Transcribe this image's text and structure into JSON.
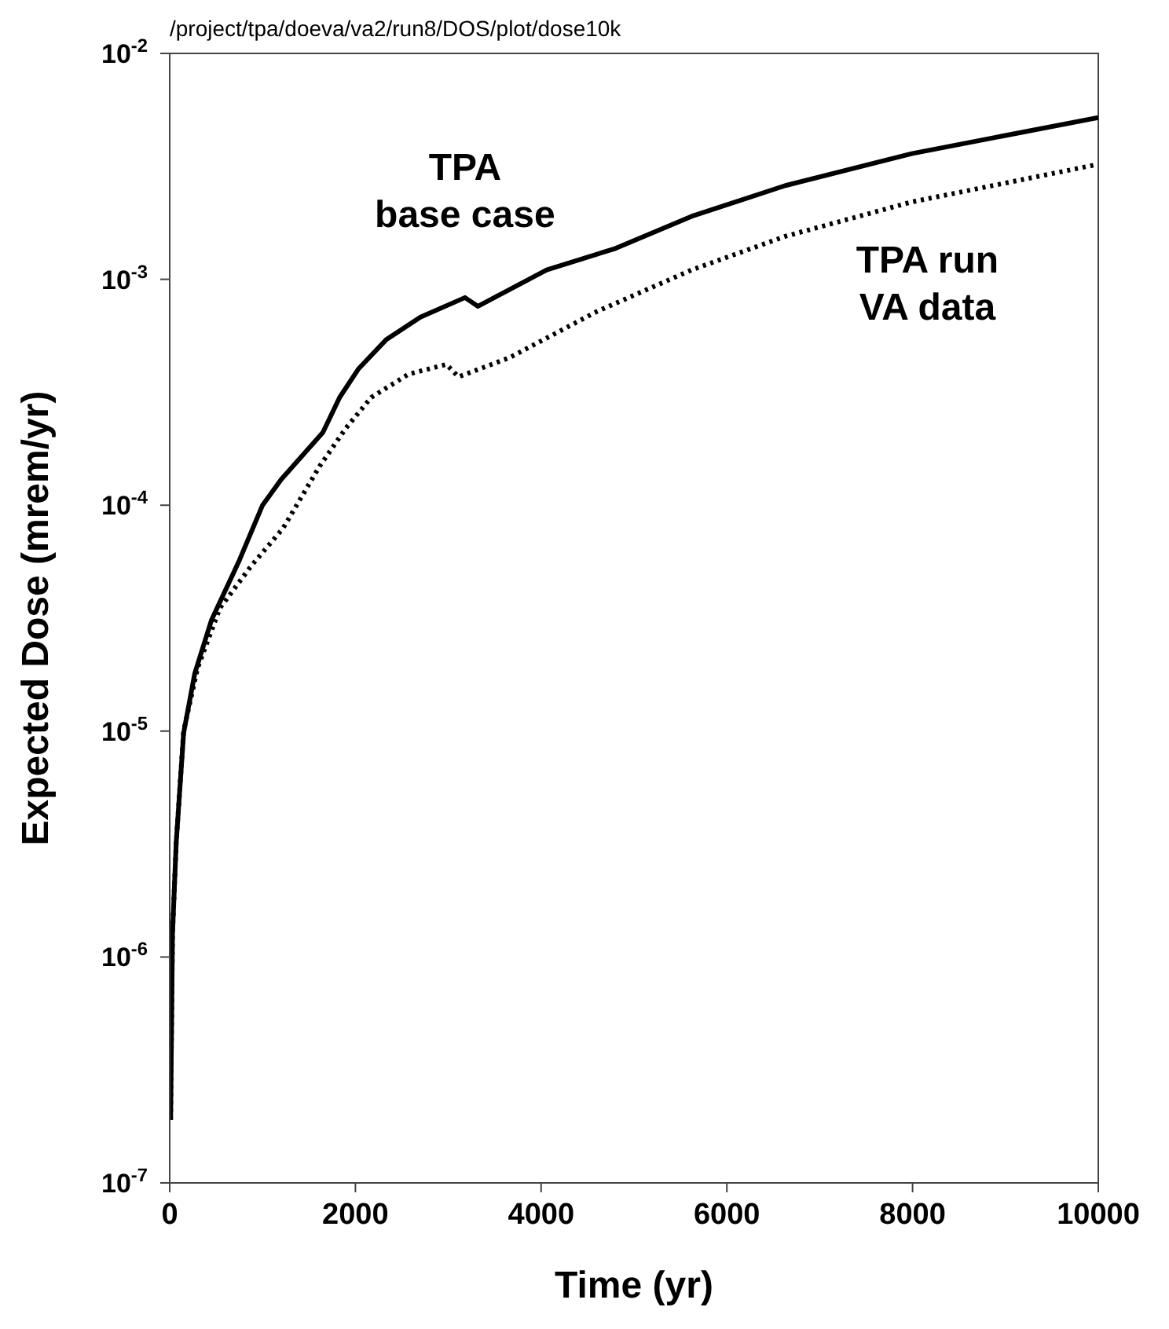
{
  "chart_data": {
    "type": "line",
    "title": "/project/tpa/doeva/va2/run8/DOS/plot/dose10k",
    "xlabel": "Time (yr)",
    "ylabel": "Expected Dose (mrem/yr)",
    "log": "y",
    "grid": false,
    "legend": false,
    "marker": "none",
    "xlim": [
      0,
      10000
    ],
    "xticks": [
      0,
      2000,
      4000,
      6000,
      8000,
      10000
    ],
    "ylim": [
      1e-07,
      0.01
    ],
    "yticks": [
      {
        "value": 1e-07,
        "label": "10$^{-7}$"
      },
      {
        "value": 1e-06,
        "label": "10$^{-6}$"
      },
      {
        "value": 1e-05,
        "label": "10$^{-5}$"
      },
      {
        "value": 0.0001,
        "label": "10$^{-4}$"
      },
      {
        "value": 0.001,
        "label": "10$^{-3}$"
      },
      {
        "value": 0.01,
        "label": "10$^{-2}$"
      }
    ],
    "series": [
      {
        "name": "TPA\nbase case",
        "color": "#000000",
        "line_style": "solid",
        "x": [
          10,
          30,
          70,
          150,
          270,
          450,
          750,
          1000,
          1200,
          1650,
          1830,
          2030,
          2330,
          2700,
          3180,
          3320,
          4060,
          4800,
          5620,
          6630,
          7990,
          10000
        ],
        "values": [
          1.9e-07,
          1.26e-06,
          3.2e-06,
          9.8e-06,
          1.8e-05,
          3.1e-05,
          5.7e-05,
          0.0001,
          0.00013,
          0.00021,
          0.0003,
          0.0004,
          0.00054,
          0.00068,
          0.00083,
          0.00076,
          0.0011,
          0.00137,
          0.0019,
          0.0026,
          0.0036,
          0.0052
        ]
      },
      {
        "name": "TPA run\nVA data",
        "color": "#000000",
        "line_style": "dotted",
        "x": [
          10,
          30,
          70,
          150,
          300,
          540,
          880,
          1220,
          1620,
          1900,
          2170,
          2570,
          2980,
          3110,
          3660,
          4600,
          5620,
          6630,
          7990,
          9950
        ],
        "values": [
          1.9e-07,
          1.26e-06,
          3.2e-06,
          1e-05,
          1.9e-05,
          3.5e-05,
          5.4e-05,
          7.9e-05,
          0.00015,
          0.00022,
          0.0003,
          0.00038,
          0.00042,
          0.00037,
          0.00045,
          0.00072,
          0.0011,
          0.00155,
          0.0022,
          0.0032
        ]
      }
    ]
  }
}
